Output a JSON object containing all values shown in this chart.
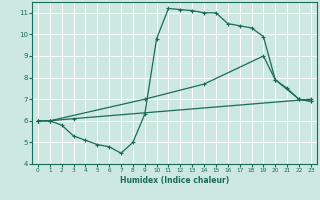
{
  "xlabel": "Humidex (Indice chaleur)",
  "bg_color": "#cce8e0",
  "grid_color": "#ffffff",
  "line_color": "#1a6b5a",
  "xlim": [
    -0.5,
    23.5
  ],
  "ylim": [
    4,
    11.5
  ],
  "xticks": [
    0,
    1,
    2,
    3,
    4,
    5,
    6,
    7,
    8,
    9,
    10,
    11,
    12,
    13,
    14,
    15,
    16,
    17,
    18,
    19,
    20,
    21,
    22,
    23
  ],
  "yticks": [
    4,
    5,
    6,
    7,
    8,
    9,
    10,
    11
  ],
  "line1_x": [
    0,
    1,
    2,
    3,
    4,
    5,
    6,
    7,
    8,
    9,
    10,
    11,
    12,
    13,
    14,
    15,
    16,
    17,
    18,
    19,
    20,
    21,
    22,
    23
  ],
  "line1_y": [
    6.0,
    6.0,
    5.8,
    5.3,
    5.1,
    4.9,
    4.8,
    4.5,
    5.0,
    6.3,
    9.8,
    11.2,
    11.15,
    11.1,
    11.0,
    11.0,
    10.5,
    10.4,
    10.3,
    9.9,
    7.9,
    7.5,
    7.0,
    6.9
  ],
  "line2_x": [
    0,
    1,
    3,
    23
  ],
  "line2_y": [
    6.0,
    6.0,
    6.1,
    7.0
  ],
  "line3_x": [
    0,
    1,
    9,
    14,
    19,
    20,
    22,
    23
  ],
  "line3_y": [
    6.0,
    6.0,
    7.0,
    7.7,
    9.0,
    7.9,
    7.0,
    6.9
  ]
}
